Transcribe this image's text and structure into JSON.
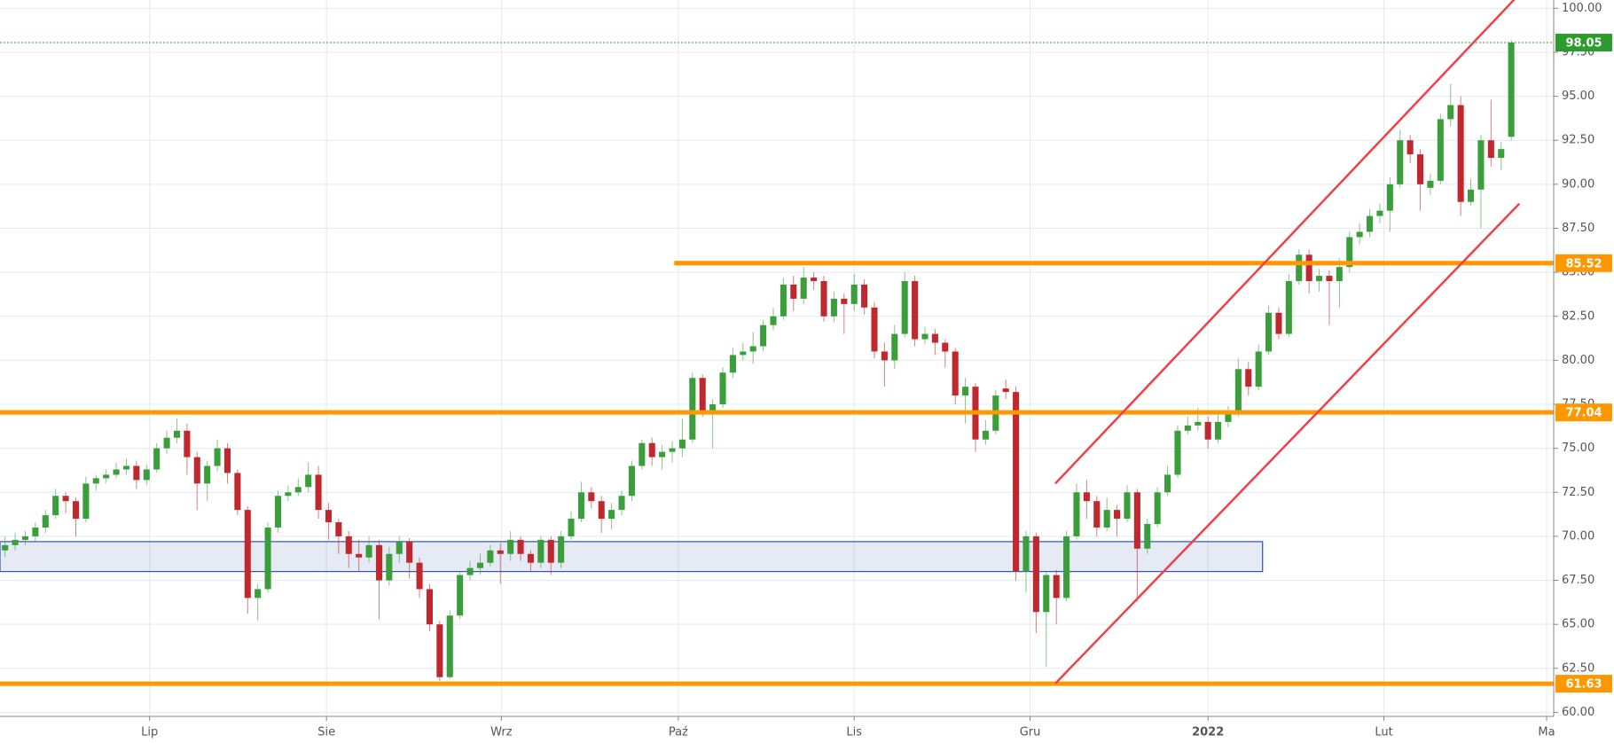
{
  "chart_data": {
    "type": "candlestick",
    "up_color": "#3a9e3a",
    "down_color": "#c0282e",
    "grid": true,
    "xlim": [
      -0.5,
      153.2
    ],
    "ylim": [
      59.77,
      100.47
    ],
    "xticks": [
      {
        "value": 14.3,
        "label": "Lip"
      },
      {
        "value": 31.8,
        "label": "Sie"
      },
      {
        "value": 49.1,
        "label": "Wrz"
      },
      {
        "value": 66.6,
        "label": "Paź"
      },
      {
        "value": 84,
        "label": "Lis"
      },
      {
        "value": 101.4,
        "label": "Gru"
      },
      {
        "value": 119,
        "label": "2022",
        "bold": true
      },
      {
        "value": 136.4,
        "label": "Lut"
      },
      {
        "value": 152.5,
        "label": "Ma"
      }
    ],
    "yticks": [
      {
        "value": 60,
        "label": "60.00"
      },
      {
        "value": 62.5,
        "label": "62.50"
      },
      {
        "value": 65,
        "label": "65.00"
      },
      {
        "value": 67.5,
        "label": "67.50"
      },
      {
        "value": 70,
        "label": "70.00"
      },
      {
        "value": 72.5,
        "label": "72.50"
      },
      {
        "value": 75,
        "label": "75.00"
      },
      {
        "value": 77.5,
        "label": "77.50"
      },
      {
        "value": 80,
        "label": "80.00"
      },
      {
        "value": 82.5,
        "label": "82.50"
      },
      {
        "value": 85,
        "label": "85.00"
      },
      {
        "value": 87.5,
        "label": "87.50"
      },
      {
        "value": 90,
        "label": "90.00"
      },
      {
        "value": 92.5,
        "label": "92.50"
      },
      {
        "value": 95,
        "label": "95.00"
      },
      {
        "value": 97.5,
        "label": "97.50"
      },
      {
        "value": 100,
        "label": "100.00"
      }
    ],
    "open": [
      69.2,
      69.5,
      69.8,
      70.0,
      70.5,
      71.2,
      72.3,
      72.0,
      71.0,
      73.0,
      73.3,
      73.5,
      73.8,
      74.0,
      73.2,
      73.8,
      75.0,
      75.6,
      76.0,
      74.5,
      73.0,
      74.0,
      75.0,
      73.6,
      71.5,
      66.5,
      67.0,
      70.5,
      72.3,
      72.5,
      72.8,
      73.5,
      71.5,
      70.8,
      70.0,
      69.0,
      68.8,
      69.5,
      67.5,
      69.0,
      69.7,
      68.5,
      67.0,
      65.0,
      62.0,
      65.5,
      67.8,
      68.2,
      68.5,
      69.2,
      69.0,
      69.8,
      69.0,
      68.5,
      69.8,
      68.5,
      70.0,
      71.0,
      72.5,
      72.0,
      71.0,
      71.5,
      72.3,
      74.0,
      75.3,
      74.5,
      74.8,
      75.0,
      75.5,
      79.0,
      77.0,
      77.5,
      79.3,
      80.3,
      80.5,
      80.8,
      82.0,
      82.5,
      84.3,
      83.5,
      84.7,
      84.5,
      82.5,
      83.5,
      83.2,
      84.3,
      83.0,
      80.5,
      80.0,
      81.5,
      84.5,
      81.2,
      81.5,
      81.0,
      80.5,
      78.0,
      78.5,
      75.5,
      76.0,
      78.4,
      78.2,
      68.0,
      70.0,
      65.7,
      67.8,
      66.5,
      70.0,
      72.5,
      72.0,
      70.5,
      71.5,
      71.0,
      72.5,
      69.3,
      70.7,
      72.5,
      73.5,
      76.0,
      76.3,
      76.5,
      75.5,
      76.5,
      77.0,
      79.5,
      78.5,
      80.5,
      82.7,
      81.5,
      84.5,
      86.0,
      84.5,
      84.8,
      84.5,
      85.3,
      87.0,
      87.3,
      88.2,
      88.5,
      90.0,
      92.5,
      91.7,
      89.8,
      90.2,
      93.7,
      94.5,
      89.0,
      89.7,
      92.5,
      91.5,
      92.7
    ],
    "high": [
      70.0,
      70.2,
      70.3,
      70.8,
      71.5,
      72.7,
      72.5,
      72.2,
      73.4,
      73.5,
      73.8,
      74.2,
      74.4,
      74.3,
      74.1,
      75.3,
      76.0,
      76.7,
      76.4,
      74.8,
      74.3,
      75.5,
      75.3,
      73.8,
      71.7,
      67.3,
      70.8,
      72.6,
      72.9,
      73.3,
      74.2,
      74.0,
      71.9,
      71.0,
      70.3,
      69.8,
      70.0,
      69.8,
      69.4,
      70.0,
      69.9,
      68.8,
      67.3,
      65.2,
      65.8,
      68.0,
      68.6,
      69.0,
      69.5,
      69.6,
      70.3,
      70.0,
      69.2,
      70.0,
      70.0,
      70.3,
      71.4,
      73.1,
      72.8,
      72.3,
      71.9,
      72.6,
      74.3,
      75.5,
      75.6,
      75.2,
      75.4,
      76.7,
      79.3,
      79.2,
      77.8,
      79.6,
      80.7,
      81.0,
      81.6,
      82.3,
      83.0,
      84.7,
      84.8,
      85.3,
      85.0,
      84.8,
      83.9,
      83.8,
      84.9,
      84.6,
      83.3,
      81.0,
      82.0,
      85.0,
      84.8,
      81.9,
      81.8,
      81.2,
      80.7,
      79.0,
      78.7,
      76.6,
      78.3,
      78.9,
      78.5,
      70.3,
      70.2,
      68.0,
      68.1,
      70.3,
      73.0,
      73.2,
      72.3,
      72.2,
      71.8,
      72.9,
      72.7,
      71.0,
      72.8,
      74.0,
      76.3,
      76.8,
      77.3,
      76.8,
      76.9,
      77.4,
      80.1,
      79.9,
      80.9,
      83.1,
      83.0,
      84.9,
      86.3,
      86.3,
      85.2,
      85.1,
      85.8,
      87.3,
      87.8,
      88.6,
      88.9,
      90.4,
      93.1,
      92.8,
      92.0,
      90.6,
      94.0,
      95.7,
      95.0,
      90.3,
      92.8,
      94.8,
      92.4,
      98.2
    ],
    "low": [
      68.8,
      69.2,
      69.5,
      69.7,
      70.2,
      71.0,
      71.3,
      70.0,
      70.8,
      72.6,
      73.0,
      73.3,
      73.5,
      72.7,
      72.9,
      73.6,
      74.7,
      75.3,
      73.5,
      71.5,
      72.0,
      73.7,
      73.0,
      71.2,
      65.6,
      65.2,
      66.8,
      70.2,
      72.0,
      72.3,
      72.5,
      71.0,
      69.8,
      69.0,
      68.2,
      68.0,
      68.5,
      65.3,
      67.2,
      68.5,
      67.6,
      66.5,
      64.6,
      61.8,
      61.9,
      65.3,
      67.5,
      67.8,
      68.3,
      67.3,
      68.6,
      68.6,
      68.0,
      68.2,
      67.8,
      68.2,
      69.8,
      70.8,
      71.6,
      70.2,
      70.4,
      71.2,
      72.0,
      73.8,
      74.0,
      73.8,
      74.2,
      74.5,
      75.3,
      76.8,
      75.0,
      77.3,
      79.0,
      80.0,
      79.8,
      80.5,
      81.7,
      82.3,
      82.8,
      83.2,
      84.0,
      82.2,
      82.2,
      81.5,
      82.8,
      82.6,
      80.1,
      78.5,
      79.5,
      81.3,
      80.8,
      80.9,
      80.3,
      79.6,
      77.5,
      76.4,
      74.8,
      75.2,
      75.8,
      77.8,
      67.5,
      66.8,
      64.5,
      62.6,
      65.0,
      66.3,
      69.8,
      71.0,
      70.0,
      70.3,
      70.0,
      70.8,
      66.3,
      69.0,
      70.5,
      72.3,
      73.3,
      75.8,
      76.0,
      75.0,
      75.3,
      76.2,
      76.8,
      78.0,
      78.3,
      80.3,
      81.2,
      81.3,
      84.3,
      83.8,
      83.9,
      82.0,
      83.0,
      85.0,
      86.6,
      87.0,
      87.8,
      87.3,
      89.8,
      91.2,
      88.5,
      89.4,
      90.0,
      93.3,
      88.2,
      88.8,
      87.5,
      91.0,
      90.8,
      92.5
    ],
    "close": [
      69.5,
      69.8,
      70.0,
      70.5,
      71.2,
      72.3,
      72.0,
      71.0,
      73.0,
      73.3,
      73.5,
      73.8,
      74.0,
      73.2,
      73.8,
      75.0,
      75.6,
      76.0,
      74.5,
      73.0,
      74.0,
      75.0,
      73.6,
      71.5,
      66.5,
      67.0,
      70.5,
      72.3,
      72.5,
      72.8,
      73.5,
      71.5,
      70.8,
      70.0,
      69.0,
      68.8,
      69.5,
      67.5,
      69.0,
      69.7,
      68.5,
      67.0,
      65.0,
      62.0,
      65.5,
      67.8,
      68.2,
      68.5,
      69.2,
      69.0,
      69.8,
      69.0,
      68.5,
      69.8,
      68.5,
      70.0,
      71.0,
      72.5,
      72.0,
      71.0,
      71.5,
      72.3,
      74.0,
      75.3,
      74.5,
      74.8,
      75.0,
      75.5,
      79.0,
      77.0,
      77.5,
      79.3,
      80.3,
      80.5,
      80.8,
      82.0,
      82.5,
      84.3,
      83.5,
      84.7,
      84.5,
      82.5,
      83.5,
      83.2,
      84.3,
      83.0,
      80.5,
      80.0,
      81.5,
      84.5,
      81.2,
      81.5,
      81.0,
      80.5,
      78.0,
      78.5,
      75.5,
      76.0,
      78.0,
      78.2,
      68.0,
      70.0,
      65.7,
      67.8,
      66.5,
      70.0,
      72.5,
      72.0,
      70.5,
      71.5,
      71.0,
      72.5,
      69.3,
      70.7,
      72.5,
      73.5,
      76.0,
      76.3,
      76.5,
      75.5,
      76.5,
      77.0,
      79.5,
      78.5,
      80.5,
      82.7,
      81.5,
      84.5,
      86.0,
      84.5,
      84.8,
      84.5,
      85.3,
      87.0,
      87.3,
      88.2,
      88.5,
      90.0,
      92.5,
      91.7,
      90.0,
      90.2,
      93.7,
      94.5,
      89.0,
      89.7,
      92.5,
      91.5,
      92.0,
      98.05
    ],
    "last_price_color": "#2e9b2e",
    "level_color": "#ff9800",
    "levels": [
      {
        "value": 85.52,
        "x_start": 66.2
      },
      {
        "value": 77.04
      },
      {
        "value": 61.63
      }
    ],
    "zone": {
      "x": [
        -0.5,
        124.4
      ],
      "y": [
        68.0,
        69.7
      ],
      "color": "#2a56b0"
    },
    "trend_color": "#f04048",
    "trendlines": [
      {
        "x": [
          103.9,
          149.8
        ],
        "y": [
          73.0,
          100.8
        ]
      },
      {
        "x": [
          103.9,
          149.8
        ],
        "y": [
          61.64,
          88.9
        ]
      }
    ]
  }
}
